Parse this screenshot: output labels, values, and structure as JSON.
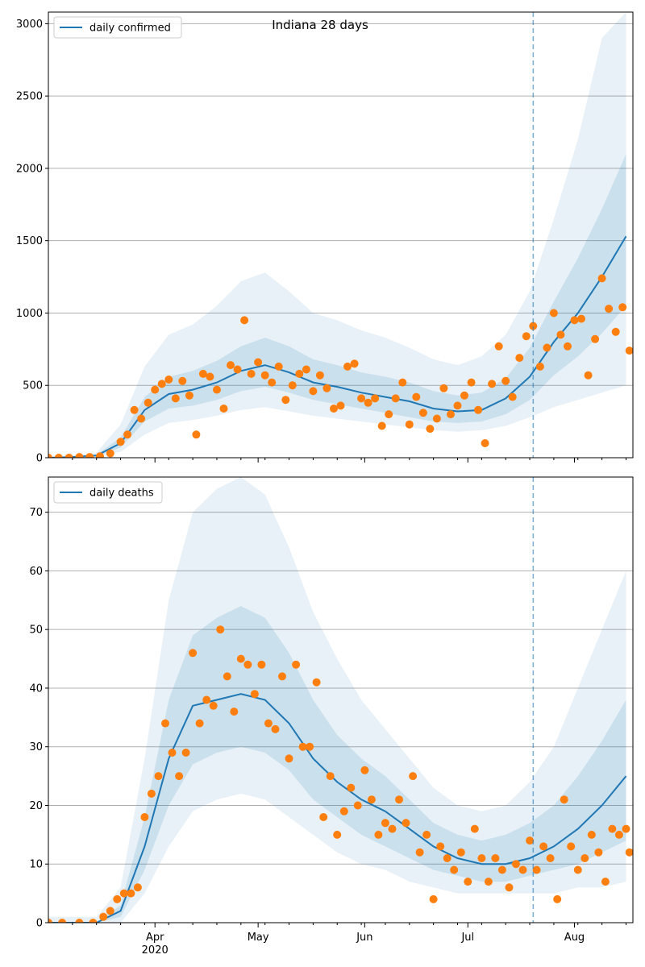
{
  "chart_data": [
    {
      "type": "line",
      "title": "Indiana 28 days",
      "legend": {
        "label": "daily confirmed",
        "placement": "top-left"
      },
      "ylim": [
        0,
        3080
      ],
      "yticks": [
        0,
        500,
        1000,
        1500,
        2000,
        2500,
        3000
      ],
      "grid": "horizontal",
      "forecast_start": "2020-07-20",
      "x_dates": [
        "2020-03-01",
        "2020-03-08",
        "2020-03-15",
        "2020-03-22",
        "2020-03-29",
        "2020-04-05",
        "2020-04-12",
        "2020-04-19",
        "2020-04-26",
        "2020-05-03",
        "2020-05-10",
        "2020-05-17",
        "2020-05-24",
        "2020-05-31",
        "2020-06-07",
        "2020-06-14",
        "2020-06-21",
        "2020-06-28",
        "2020-07-05",
        "2020-07-12",
        "2020-07-19",
        "2020-07-26",
        "2020-08-02",
        "2020-08-09",
        "2020-08-16"
      ],
      "series": [
        {
          "kind": "smoothed",
          "values": [
            0,
            5,
            15,
            100,
            330,
            440,
            470,
            520,
            600,
            640,
            590,
            520,
            490,
            450,
            420,
            390,
            340,
            320,
            330,
            410,
            560,
            800,
            1000,
            1250,
            1530
          ]
        },
        {
          "kind": "band_inner",
          "lower": [
            0,
            3,
            10,
            70,
            250,
            340,
            360,
            400,
            460,
            490,
            450,
            400,
            370,
            340,
            310,
            280,
            250,
            240,
            250,
            300,
            400,
            570,
            700,
            860,
            1050
          ],
          "upper": [
            0,
            8,
            22,
            140,
            420,
            560,
            600,
            670,
            770,
            830,
            770,
            680,
            640,
            590,
            560,
            520,
            460,
            430,
            450,
            550,
            760,
            1080,
            1380,
            1720,
            2100
          ]
        },
        {
          "kind": "band_outer",
          "lower": [
            0,
            1,
            5,
            40,
            160,
            240,
            260,
            290,
            330,
            350,
            320,
            290,
            270,
            250,
            230,
            210,
            190,
            180,
            190,
            220,
            280,
            350,
            400,
            450,
            500
          ],
          "upper": [
            0,
            12,
            35,
            230,
            630,
            850,
            920,
            1050,
            1220,
            1280,
            1150,
            1000,
            950,
            880,
            830,
            760,
            680,
            640,
            700,
            850,
            1150,
            1650,
            2200,
            2900,
            3080
          ]
        }
      ],
      "observed": {
        "dates": [
          "2020-03-01",
          "2020-03-04",
          "2020-03-07",
          "2020-03-10",
          "2020-03-13",
          "2020-03-16",
          "2020-03-19",
          "2020-03-22",
          "2020-03-24",
          "2020-03-26",
          "2020-03-28",
          "2020-03-30",
          "2020-04-01",
          "2020-04-03",
          "2020-04-05",
          "2020-04-07",
          "2020-04-09",
          "2020-04-11",
          "2020-04-13",
          "2020-04-15",
          "2020-04-17",
          "2020-04-19",
          "2020-04-21",
          "2020-04-23",
          "2020-04-25",
          "2020-04-27",
          "2020-04-29",
          "2020-05-01",
          "2020-05-03",
          "2020-05-05",
          "2020-05-07",
          "2020-05-09",
          "2020-05-11",
          "2020-05-13",
          "2020-05-15",
          "2020-05-17",
          "2020-05-19",
          "2020-05-21",
          "2020-05-23",
          "2020-05-25",
          "2020-05-27",
          "2020-05-29",
          "2020-05-31",
          "2020-06-02",
          "2020-06-04",
          "2020-06-06",
          "2020-06-08",
          "2020-06-10",
          "2020-06-12",
          "2020-06-14",
          "2020-06-16",
          "2020-06-18",
          "2020-06-20",
          "2020-06-22",
          "2020-06-24",
          "2020-06-26",
          "2020-06-28",
          "2020-06-30",
          "2020-07-02",
          "2020-07-04",
          "2020-07-06",
          "2020-07-08",
          "2020-07-10",
          "2020-07-12",
          "2020-07-14",
          "2020-07-16",
          "2020-07-18",
          "2020-07-20",
          "2020-07-22",
          "2020-07-24",
          "2020-07-26",
          "2020-07-28",
          "2020-07-30",
          "2020-08-01",
          "2020-08-03",
          "2020-08-05",
          "2020-08-07",
          "2020-08-09",
          "2020-08-11",
          "2020-08-13",
          "2020-08-15",
          "2020-08-17"
        ],
        "values": [
          0,
          0,
          0,
          5,
          5,
          10,
          30,
          110,
          160,
          330,
          270,
          380,
          470,
          510,
          540,
          410,
          530,
          430,
          160,
          580,
          560,
          470,
          340,
          640,
          610,
          950,
          580,
          660,
          570,
          520,
          630,
          400,
          500,
          580,
          610,
          460,
          570,
          480,
          340,
          360,
          630,
          650,
          410,
          380,
          410,
          220,
          300,
          410,
          520,
          230,
          420,
          310,
          200,
          270,
          480,
          300,
          360,
          430,
          520,
          330,
          100,
          510,
          770,
          530,
          420,
          690,
          840,
          910,
          630,
          760,
          1000,
          850,
          770,
          950,
          960,
          570,
          820,
          1240,
          1030,
          870,
          1040,
          740
        ]
      }
    },
    {
      "type": "line",
      "legend": {
        "label": "daily deaths",
        "placement": "top-left"
      },
      "ylim": [
        0,
        76
      ],
      "yticks": [
        0,
        10,
        20,
        30,
        40,
        50,
        60,
        70
      ],
      "grid": "horizontal",
      "forecast_start": "2020-07-20",
      "xticks": [
        {
          "date": "2020-04-01",
          "label": "Apr",
          "sublabel": "2020"
        },
        {
          "date": "2020-05-01",
          "label": "May"
        },
        {
          "date": "2020-06-01",
          "label": "Jun"
        },
        {
          "date": "2020-07-01",
          "label": "Jul"
        },
        {
          "date": "2020-08-01",
          "label": "Aug"
        }
      ],
      "x_dates": [
        "2020-03-01",
        "2020-03-08",
        "2020-03-15",
        "2020-03-22",
        "2020-03-29",
        "2020-04-05",
        "2020-04-12",
        "2020-04-19",
        "2020-04-26",
        "2020-05-03",
        "2020-05-10",
        "2020-05-17",
        "2020-05-24",
        "2020-05-31",
        "2020-06-07",
        "2020-06-14",
        "2020-06-21",
        "2020-06-28",
        "2020-07-05",
        "2020-07-12",
        "2020-07-19",
        "2020-07-26",
        "2020-08-02",
        "2020-08-09",
        "2020-08-16"
      ],
      "series": [
        {
          "kind": "smoothed",
          "values": [
            0,
            0,
            0,
            2,
            13,
            28,
            37,
            38,
            39,
            38,
            34,
            28,
            24,
            21,
            19,
            16,
            13,
            11,
            10,
            10,
            11,
            13,
            16,
            20,
            25
          ]
        },
        {
          "kind": "band_inner",
          "lower": [
            0,
            0,
            0,
            1,
            9,
            20,
            27,
            29,
            30,
            29,
            26,
            21,
            18,
            15,
            13,
            11,
            9,
            8,
            7,
            7,
            8,
            9,
            10,
            12,
            14
          ],
          "upper": [
            0,
            0,
            0,
            3,
            18,
            38,
            49,
            52,
            54,
            52,
            46,
            38,
            32,
            28,
            25,
            21,
            17,
            15,
            14,
            15,
            17,
            20,
            25,
            31,
            38
          ]
        },
        {
          "kind": "band_outer",
          "lower": [
            0,
            0,
            0,
            0,
            5,
            13,
            19,
            21,
            22,
            21,
            18,
            15,
            12,
            10,
            9,
            7,
            6,
            5,
            5,
            5,
            5,
            5,
            6,
            6,
            7
          ],
          "upper": [
            1,
            1,
            1,
            6,
            28,
            55,
            70,
            74,
            76,
            73,
            64,
            53,
            45,
            38,
            33,
            28,
            23,
            20,
            19,
            20,
            24,
            30,
            40,
            50,
            60
          ]
        }
      ],
      "observed": {
        "dates": [
          "2020-03-01",
          "2020-03-05",
          "2020-03-10",
          "2020-03-14",
          "2020-03-17",
          "2020-03-19",
          "2020-03-21",
          "2020-03-23",
          "2020-03-25",
          "2020-03-27",
          "2020-03-29",
          "2020-03-31",
          "2020-04-02",
          "2020-04-04",
          "2020-04-06",
          "2020-04-08",
          "2020-04-10",
          "2020-04-12",
          "2020-04-14",
          "2020-04-16",
          "2020-04-18",
          "2020-04-20",
          "2020-04-22",
          "2020-04-24",
          "2020-04-26",
          "2020-04-28",
          "2020-04-30",
          "2020-05-02",
          "2020-05-04",
          "2020-05-06",
          "2020-05-08",
          "2020-05-10",
          "2020-05-12",
          "2020-05-14",
          "2020-05-16",
          "2020-05-18",
          "2020-05-20",
          "2020-05-22",
          "2020-05-24",
          "2020-05-26",
          "2020-05-28",
          "2020-05-30",
          "2020-06-01",
          "2020-06-03",
          "2020-06-05",
          "2020-06-07",
          "2020-06-09",
          "2020-06-11",
          "2020-06-13",
          "2020-06-15",
          "2020-06-17",
          "2020-06-19",
          "2020-06-21",
          "2020-06-23",
          "2020-06-25",
          "2020-06-27",
          "2020-06-29",
          "2020-07-01",
          "2020-07-03",
          "2020-07-05",
          "2020-07-07",
          "2020-07-09",
          "2020-07-11",
          "2020-07-13",
          "2020-07-15",
          "2020-07-17",
          "2020-07-19",
          "2020-07-21",
          "2020-07-23",
          "2020-07-25",
          "2020-07-27",
          "2020-07-29",
          "2020-07-31",
          "2020-08-02",
          "2020-08-04",
          "2020-08-06",
          "2020-08-08",
          "2020-08-10",
          "2020-08-12",
          "2020-08-14",
          "2020-08-16",
          "2020-08-17"
        ],
        "values": [
          0,
          0,
          0,
          0,
          1,
          2,
          4,
          5,
          5,
          6,
          18,
          22,
          25,
          34,
          29,
          25,
          29,
          46,
          34,
          38,
          37,
          50,
          42,
          36,
          45,
          44,
          39,
          44,
          34,
          33,
          42,
          28,
          44,
          30,
          30,
          41,
          18,
          25,
          15,
          19,
          23,
          20,
          26,
          21,
          15,
          17,
          16,
          21,
          17,
          25,
          12,
          15,
          4,
          13,
          11,
          9,
          12,
          7,
          16,
          11,
          7,
          11,
          9,
          6,
          10,
          9,
          14,
          9,
          13,
          11,
          4,
          21,
          13,
          9,
          11,
          15,
          12,
          7,
          16,
          15,
          16,
          12
        ]
      }
    }
  ]
}
